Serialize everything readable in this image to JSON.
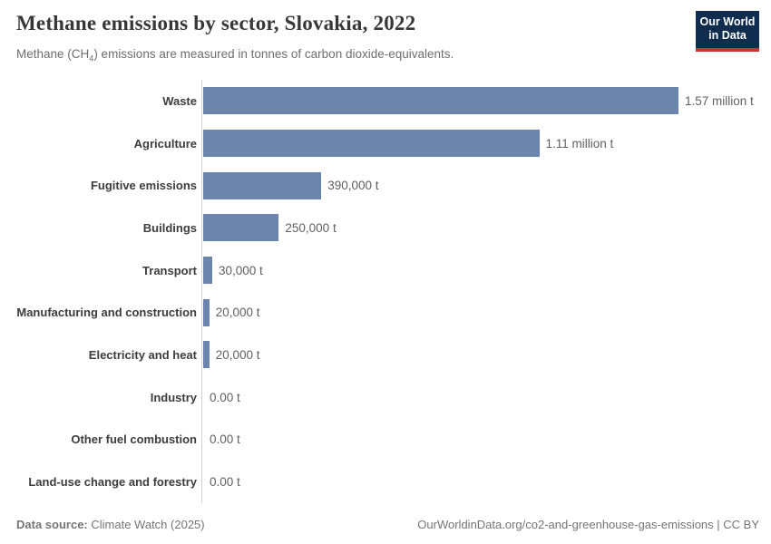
{
  "header": {
    "title": "Methane emissions by sector, Slovakia, 2022",
    "subtitle_prefix": "Methane (CH",
    "subtitle_sub": "4",
    "subtitle_suffix": ") emissions are measured in tonnes of carbon dioxide-equivalents.",
    "logo": {
      "line1": "Our World",
      "line2": "in Data"
    }
  },
  "chart_data": {
    "type": "bar",
    "orientation": "horizontal",
    "title": "Methane emissions by sector, Slovakia, 2022",
    "categories": [
      "Waste",
      "Agriculture",
      "Fugitive emissions",
      "Buildings",
      "Transport",
      "Manufacturing and construction",
      "Electricity and heat",
      "Industry",
      "Other fuel combustion",
      "Land-use change and forestry"
    ],
    "values": [
      1570000,
      1110000,
      390000,
      250000,
      30000,
      20000,
      20000,
      0,
      0,
      0
    ],
    "value_labels": [
      "1.57 million t",
      "1.11 million t",
      "390,000 t",
      "250,000 t",
      "30,000 t",
      "20,000 t",
      "20,000 t",
      "0.00 t",
      "0.00 t",
      "0.00 t"
    ],
    "unit": "t",
    "xlim": [
      0,
      1570000
    ],
    "grid": false,
    "legend": "none",
    "bar_color": "#6c85ad"
  },
  "colors": {
    "bar": "#6c85ad",
    "axis_line": "#d5d5d5",
    "logo_navy": "#102d4e",
    "logo_red": "#c0392b"
  },
  "footer": {
    "datasource_label": "Data source:",
    "datasource_value": "Climate Watch (2025)",
    "attribution": "OurWorldinData.org/co2-and-greenhouse-gas-emissions | CC BY"
  }
}
